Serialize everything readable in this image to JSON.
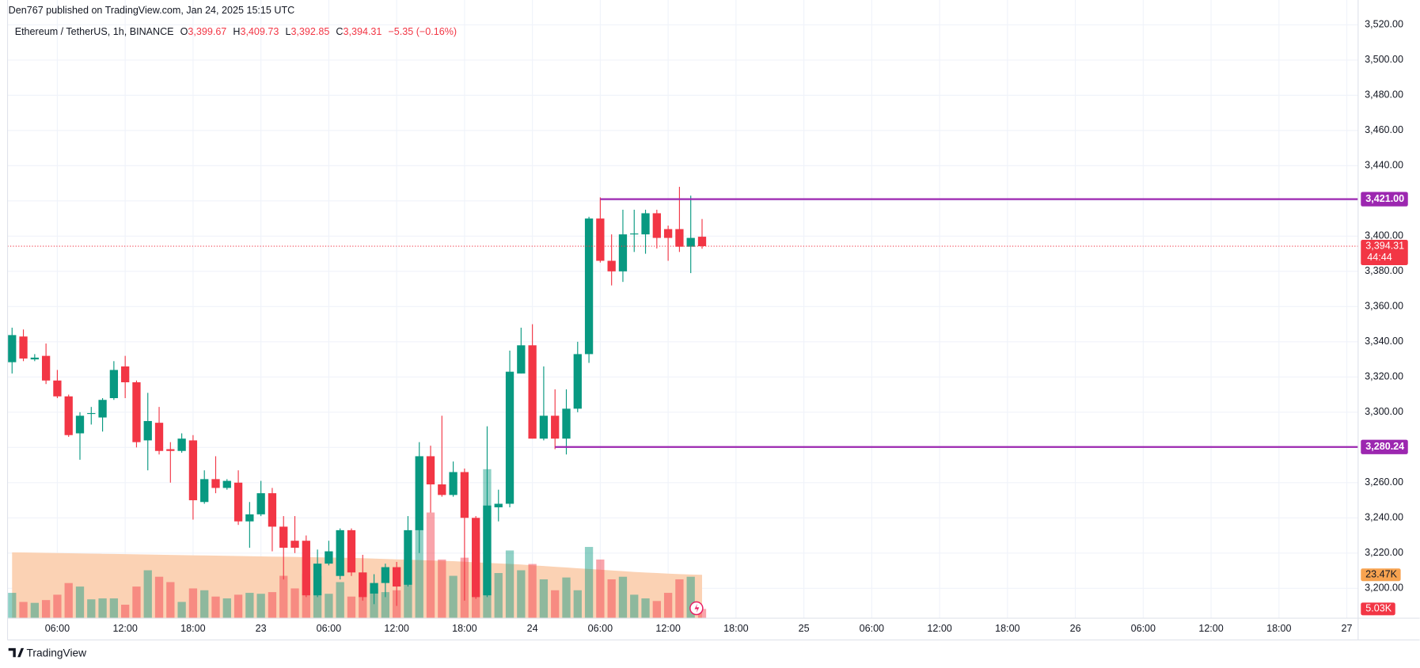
{
  "chart_data": {
    "type": "candlestick",
    "title": "Den767 published on TradingView.com, Jan 24, 2025 15:15 UTC",
    "symbol": "Ethereum / TetherUS, 1h, BINANCE",
    "legend": [
      {
        "key": "O",
        "value": 3399.67,
        "label": "3,399.67"
      },
      {
        "key": "H",
        "value": 3409.73,
        "label": "3,409.73"
      },
      {
        "key": "L",
        "value": 3392.85,
        "label": "3,392.85"
      },
      {
        "key": "C",
        "value": 3394.31,
        "label": "3,394.31"
      }
    ],
    "change": {
      "value": -5.35,
      "label": "−5.35 (−0.16%)"
    },
    "brand": "TradingView",
    "up_color": "#089981",
    "down_color": "#f23645",
    "x": [
      2,
      3,
      4,
      5,
      6,
      7,
      8,
      9,
      10,
      11,
      12,
      13,
      14,
      15,
      16,
      17,
      18,
      19,
      20,
      21,
      22,
      23,
      24,
      25,
      26,
      27,
      28,
      29,
      30,
      31,
      32,
      33,
      34,
      35,
      36,
      37,
      38,
      39,
      40,
      41,
      42,
      43,
      44,
      45,
      46,
      47,
      48,
      49,
      50,
      51,
      52,
      53,
      54,
      55,
      56,
      57,
      58,
      59,
      60,
      61,
      62,
      63
    ],
    "open": [
      3328.4,
      3343,
      3330,
      3332,
      3318,
      3309,
      3288,
      3299,
      3297,
      3308,
      3326,
      3317,
      3284,
      3294,
      3279,
      3278,
      3284,
      3249,
      3262,
      3257,
      3260,
      3238,
      3242,
      3254,
      3235,
      3227,
      3227,
      3196,
      3214,
      3207,
      3233,
      3209,
      3197,
      3203,
      3212,
      3202,
      3233,
      3275,
      3259,
      3253,
      3266,
      3240,
      3196,
      3246,
      3248,
      3322,
      3338,
      3285,
      3298,
      3285,
      3302,
      3333,
      3410,
      3386,
      3380,
      3401,
      3401,
      3413,
      3404,
      3404,
      3394,
      3399.67
    ],
    "high": [
      3348,
      3347,
      3333,
      3339,
      3324,
      3310,
      3300,
      3303,
      3308,
      3329,
      3332,
      3318,
      3311,
      3303,
      3283,
      3288,
      3287,
      3267,
      3275,
      3262,
      3267,
      3249,
      3261,
      3257,
      3241,
      3241,
      3230,
      3222,
      3227,
      3234,
      3234,
      3219,
      3208,
      3214,
      3215,
      3241,
      3283,
      3281,
      3298,
      3272,
      3268,
      3241,
      3292,
      3256,
      3335,
      3348,
      3350,
      3326,
      3313,
      3313,
      3340,
      3411,
      3422,
      3401,
      3415,
      3415,
      3415,
      3415,
      3406,
      3428,
      3423,
      3409.73
    ],
    "low": [
      3322,
      3329,
      3329,
      3316,
      3308,
      3286,
      3273,
      3293,
      3289,
      3307,
      3308,
      3280,
      3267,
      3276,
      3260,
      3277,
      3239,
      3248,
      3254,
      3256,
      3236,
      3223,
      3241,
      3221,
      3205,
      3220,
      3195,
      3195,
      3213,
      3205,
      3207,
      3193,
      3191,
      3195,
      3190,
      3201,
      3220,
      3243,
      3252,
      3252,
      3193,
      3194,
      3195,
      3238,
      3246,
      3322,
      3285,
      3284,
      3279,
      3276,
      3300,
      3328,
      3385,
      3372,
      3374,
      3391,
      3390,
      3393,
      3386,
      3391,
      3379,
      3392.85
    ],
    "close": [
      3343.8,
      3330.5,
      3331,
      3318,
      3309,
      3287,
      3298,
      3299.5,
      3307,
      3324,
      3317,
      3283,
      3295,
      3278,
      3278,
      3285,
      3250,
      3262,
      3257,
      3261,
      3238,
      3242,
      3254,
      3235,
      3223,
      3223,
      3196,
      3214,
      3221,
      3233,
      3209,
      3195,
      3203,
      3212,
      3201,
      3233,
      3275,
      3259,
      3253,
      3266,
      3240,
      3195,
      3247,
      3248,
      3323,
      3338,
      3285,
      3298,
      3285,
      3302,
      3333,
      3410,
      3386,
      3380,
      3401,
      3401.5,
      3413,
      3399,
      3399,
      3394,
      3399,
      3394.31
    ],
    "volume": {
      "values": [
        13700,
        8800,
        8300,
        9800,
        12700,
        19000,
        17100,
        10200,
        10700,
        10700,
        7300,
        17100,
        25900,
        22400,
        19500,
        8800,
        16100,
        15100,
        11700,
        10700,
        12700,
        13700,
        13200,
        14100,
        22900,
        16100,
        23900,
        22900,
        13200,
        19500,
        11700,
        24400,
        16100,
        14100,
        15100,
        30700,
        48300,
        57100,
        31700,
        22900,
        32700,
        46300,
        80500,
        24400,
        36600,
        25900,
        29300,
        21000,
        15100,
        22000,
        15100,
        38500,
        31700,
        21000,
        22400,
        12700,
        10700,
        9300,
        13700,
        21000,
        22400,
        5030
      ],
      "last_label": "5.03K",
      "ma": [
        35600,
        35500,
        35400,
        35300,
        35200,
        35100,
        35000,
        34900,
        34800,
        34700,
        34600,
        34500,
        34400,
        34300,
        34200,
        34100,
        34000,
        33900,
        33800,
        33700,
        33600,
        33500,
        33400,
        33300,
        33200,
        33100,
        33000,
        32900,
        32800,
        32700,
        32600,
        32400,
        32200,
        32000,
        31800,
        31600,
        31400,
        31200,
        31000,
        30800,
        30500,
        30200,
        29900,
        29600,
        29300,
        29000,
        28600,
        28200,
        27800,
        27400,
        27000,
        26600,
        26200,
        25800,
        25400,
        25000,
        24700,
        24400,
        24100,
        23800,
        23600,
        23470
      ],
      "ma_last_label": "23.47K",
      "ma_color": "#fbd2b4",
      "lim": [
        0,
        330000
      ]
    },
    "levels": [
      {
        "value": 3421.0,
        "label": "3,421.00",
        "from": 54,
        "color": "#9c27b0"
      },
      {
        "value": 3280.24,
        "label": "3,280.24",
        "from": 50,
        "color": "#9c27b0"
      }
    ],
    "last_price": {
      "value": 3394.31,
      "label": "3,394.31",
      "countdown": "44:44"
    },
    "xlim": [
      1.6,
      121
    ],
    "ylim": [
      3183,
      3530
    ],
    "yticks": [
      {
        "value": 3200,
        "label": "3,200.00"
      },
      {
        "value": 3220,
        "label": "3,220.00"
      },
      {
        "value": 3240,
        "label": "3,240.00"
      },
      {
        "value": 3260,
        "label": "3,260.00"
      },
      {
        "value": 3280,
        "label": "3,280.00"
      },
      {
        "value": 3300,
        "label": "3,300.00"
      },
      {
        "value": 3320,
        "label": "3,320.00"
      },
      {
        "value": 3340,
        "label": "3,340.00"
      },
      {
        "value": 3360,
        "label": "3,360.00"
      },
      {
        "value": 3380,
        "label": "3,380.00"
      },
      {
        "value": 3400,
        "label": "3,400.00"
      },
      {
        "value": 3420,
        "label": "3,420.00"
      },
      {
        "value": 3440,
        "label": "3,440.00"
      },
      {
        "value": 3460,
        "label": "3,460.00"
      },
      {
        "value": 3480,
        "label": "3,480.00"
      },
      {
        "value": 3500,
        "label": "3,500.00"
      },
      {
        "value": 3520,
        "label": "3,520.00"
      }
    ],
    "xticks": [
      {
        "value": 6,
        "label": "06:00"
      },
      {
        "value": 12,
        "label": "12:00"
      },
      {
        "value": 18,
        "label": "18:00"
      },
      {
        "value": 24,
        "label": "23"
      },
      {
        "value": 30,
        "label": "06:00"
      },
      {
        "value": 36,
        "label": "12:00"
      },
      {
        "value": 42,
        "label": "18:00"
      },
      {
        "value": 48,
        "label": "24"
      },
      {
        "value": 54,
        "label": "06:00"
      },
      {
        "value": 60,
        "label": "12:00"
      },
      {
        "value": 66,
        "label": "18:00"
      },
      {
        "value": 72,
        "label": "25"
      },
      {
        "value": 78,
        "label": "06:00"
      },
      {
        "value": 84,
        "label": "12:00"
      },
      {
        "value": 90,
        "label": "18:00"
      },
      {
        "value": 96,
        "label": "26"
      },
      {
        "value": 102,
        "label": "06:00"
      },
      {
        "value": 108,
        "label": "12:00"
      },
      {
        "value": 114,
        "label": "18:00"
      },
      {
        "value": 120,
        "label": "27"
      }
    ],
    "grid": true
  }
}
